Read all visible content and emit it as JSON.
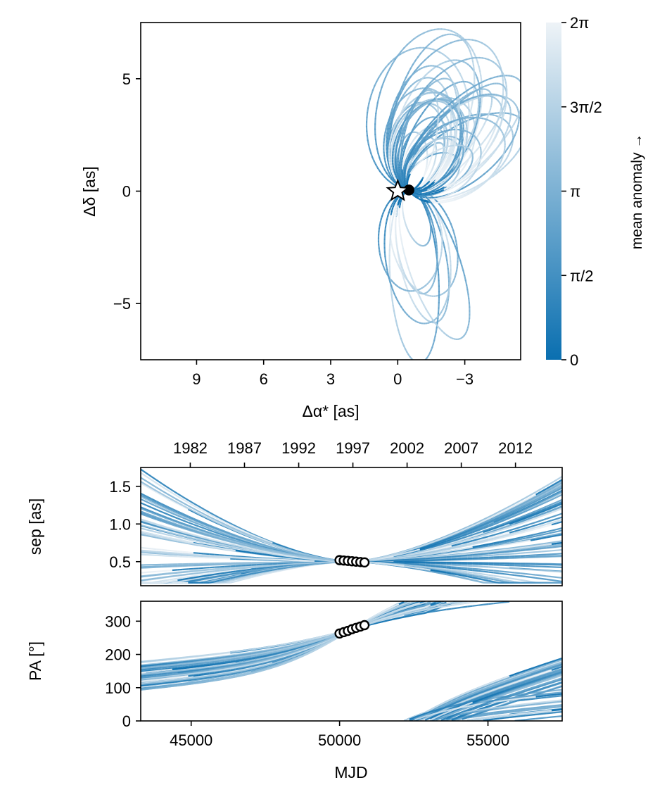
{
  "colors": {
    "dark": "#0a6fb0",
    "light": "#eef3f7",
    "marker_stroke": "#000000",
    "marker_fill": "#ffffff"
  },
  "chart_data": [
    {
      "id": "orbit",
      "type": "line",
      "title": "",
      "xlabel": "Δα* [as]",
      "ylabel": "Δδ [as]",
      "xlim": [
        11.5,
        -5.5
      ],
      "ylim": [
        -7.5,
        7.5
      ],
      "xticks": [
        9,
        6,
        3,
        0,
        -3
      ],
      "xtick_labels": [
        "9",
        "6",
        "3",
        "0",
        "−3"
      ],
      "yticks": [
        5,
        0,
        -5
      ],
      "ytick_labels": [
        "5",
        "0",
        "−5"
      ],
      "star": {
        "x": 0,
        "y": 0
      },
      "planet": {
        "x": -0.5,
        "y": 0.05
      },
      "orbit_count": 48,
      "colorbar": {
        "label": "mean anomaly →",
        "range": [
          0,
          6.2832
        ],
        "ticks": [
          0,
          1.5708,
          3.1416,
          4.7124,
          6.2832
        ],
        "tick_labels": [
          "0",
          "π/2",
          "π",
          "3π/2",
          "2π"
        ]
      }
    },
    {
      "id": "separation",
      "type": "line",
      "xlabel": "",
      "ylabel": "sep [as]",
      "xlim": [
        43300,
        57500
      ],
      "ylim": [
        0.18,
        1.75
      ],
      "yticks": [
        0.5,
        1.0,
        1.5
      ],
      "ytick_labels": [
        "0.5",
        "1.0",
        "1.5"
      ],
      "top_axis_label_years": [
        "1982",
        "1987",
        "1992",
        "1997",
        "2002",
        "2007",
        "2012"
      ],
      "top_axis_mjd": [
        44970,
        46796,
        48623,
        50449,
        52275,
        54101,
        55927
      ],
      "observations": {
        "mjd": [
          50000,
          50140,
          50280,
          50420,
          50560,
          50700,
          50840
        ],
        "sep": [
          0.52,
          0.515,
          0.51,
          0.505,
          0.5,
          0.495,
          0.49
        ]
      }
    },
    {
      "id": "position-angle",
      "type": "line",
      "xlabel": "MJD",
      "ylabel": "PA [°]",
      "xlim": [
        43300,
        57500
      ],
      "ylim": [
        0,
        360
      ],
      "xticks": [
        45000,
        50000,
        55000
      ],
      "xtick_labels": [
        "45000",
        "50000",
        "55000"
      ],
      "yticks": [
        0,
        100,
        200,
        300
      ],
      "ytick_labels": [
        "0",
        "100",
        "200",
        "300"
      ],
      "observations": {
        "mjd": [
          50000,
          50140,
          50280,
          50420,
          50560,
          50700,
          50840
        ],
        "pa": [
          263,
          267,
          271,
          276,
          280,
          284,
          288
        ]
      }
    }
  ]
}
